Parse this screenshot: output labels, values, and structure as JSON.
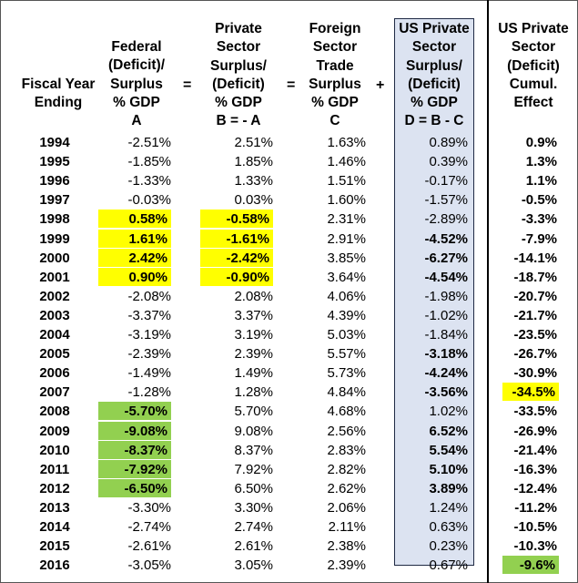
{
  "headers": {
    "year": "Fiscal Year\nEnding",
    "a": "Federal\n(Deficit)/\nSurplus\n% GDP\nA",
    "b": "Private\nSector\nSurplus/\n(Deficit)\n% GDP\nB = - A",
    "c": "Foreign\nSector\nTrade\nSurplus\n% GDP\nC",
    "d": "US Private\nSector\nSurplus/\n(Deficit)\n% GDP\nD = B - C",
    "e": "US Private\nSector\n(Deficit)\nCumul.\nEffect"
  },
  "operators": {
    "eq1": "=",
    "eq2": "=",
    "plus": "+"
  },
  "colors": {
    "yellow": "#ffff00",
    "green": "#92d050",
    "us_box": "#dce3f1"
  },
  "rows": [
    {
      "year": "1994",
      "a": "-2.51%",
      "b": "2.51%",
      "c": "1.63%",
      "d": "0.89%",
      "e": "0.9%"
    },
    {
      "year": "1995",
      "a": "-1.85%",
      "b": "1.85%",
      "c": "1.46%",
      "d": "0.39%",
      "e": "1.3%"
    },
    {
      "year": "1996",
      "a": "-1.33%",
      "b": "1.33%",
      "c": "1.51%",
      "d": "-0.17%",
      "e": "1.1%"
    },
    {
      "year": "1997",
      "a": "-0.03%",
      "b": "0.03%",
      "c": "1.60%",
      "d": "-1.57%",
      "e": "-0.5%"
    },
    {
      "year": "1998",
      "a": "0.58%",
      "b": "-0.58%",
      "c": "2.31%",
      "d": "-2.89%",
      "e": "-3.3%",
      "a_hl": "yellow",
      "b_hl": "yellow"
    },
    {
      "year": "1999",
      "a": "1.61%",
      "b": "-1.61%",
      "c": "2.91%",
      "d": "-4.52%",
      "e": "-7.9%",
      "a_hl": "yellow",
      "b_hl": "yellow",
      "d_bold": true
    },
    {
      "year": "2000",
      "a": "2.42%",
      "b": "-2.42%",
      "c": "3.85%",
      "d": "-6.27%",
      "e": "-14.1%",
      "a_hl": "yellow",
      "b_hl": "yellow",
      "d_bold": true
    },
    {
      "year": "2001",
      "a": "0.90%",
      "b": "-0.90%",
      "c": "3.64%",
      "d": "-4.54%",
      "e": "-18.7%",
      "a_hl": "yellow",
      "b_hl": "yellow",
      "d_bold": true
    },
    {
      "year": "2002",
      "a": "-2.08%",
      "b": "2.08%",
      "c": "4.06%",
      "d": "-1.98%",
      "e": "-20.7%"
    },
    {
      "year": "2003",
      "a": "-3.37%",
      "b": "3.37%",
      "c": "4.39%",
      "d": "-1.02%",
      "e": "-21.7%"
    },
    {
      "year": "2004",
      "a": "-3.19%",
      "b": "3.19%",
      "c": "5.03%",
      "d": "-1.84%",
      "e": "-23.5%"
    },
    {
      "year": "2005",
      "a": "-2.39%",
      "b": "2.39%",
      "c": "5.57%",
      "d": "-3.18%",
      "e": "-26.7%",
      "d_bold": true
    },
    {
      "year": "2006",
      "a": "-1.49%",
      "b": "1.49%",
      "c": "5.73%",
      "d": "-4.24%",
      "e": "-30.9%",
      "d_bold": true
    },
    {
      "year": "2007",
      "a": "-1.28%",
      "b": "1.28%",
      "c": "4.84%",
      "d": "-3.56%",
      "e": "-34.5%",
      "d_bold": true,
      "e_hl": "yellow"
    },
    {
      "year": "2008",
      "a": "-5.70%",
      "b": "5.70%",
      "c": "4.68%",
      "d": "1.02%",
      "e": "-33.5%",
      "a_hl": "green"
    },
    {
      "year": "2009",
      "a": "-9.08%",
      "b": "9.08%",
      "c": "2.56%",
      "d": "6.52%",
      "e": "-26.9%",
      "a_hl": "green",
      "d_bold": true
    },
    {
      "year": "2010",
      "a": "-8.37%",
      "b": "8.37%",
      "c": "2.83%",
      "d": "5.54%",
      "e": "-21.4%",
      "a_hl": "green",
      "d_bold": true
    },
    {
      "year": "2011",
      "a": "-7.92%",
      "b": "7.92%",
      "c": "2.82%",
      "d": "5.10%",
      "e": "-16.3%",
      "a_hl": "green",
      "d_bold": true
    },
    {
      "year": "2012",
      "a": "-6.50%",
      "b": "6.50%",
      "c": "2.62%",
      "d": "3.89%",
      "e": "-12.4%",
      "a_hl": "green",
      "d_bold": true
    },
    {
      "year": "2013",
      "a": "-3.30%",
      "b": "3.30%",
      "c": "2.06%",
      "d": "1.24%",
      "e": "-11.2%"
    },
    {
      "year": "2014",
      "a": "-2.74%",
      "b": "2.74%",
      "c": "2.11%",
      "d": "0.63%",
      "e": "-10.5%"
    },
    {
      "year": "2015",
      "a": "-2.61%",
      "b": "2.61%",
      "c": "2.38%",
      "d": "0.23%",
      "e": "-10.3%"
    },
    {
      "year": "2016",
      "a": "-3.05%",
      "b": "3.05%",
      "c": "2.39%",
      "d": "0.67%",
      "e": "-9.6%",
      "e_hl": "green"
    }
  ]
}
